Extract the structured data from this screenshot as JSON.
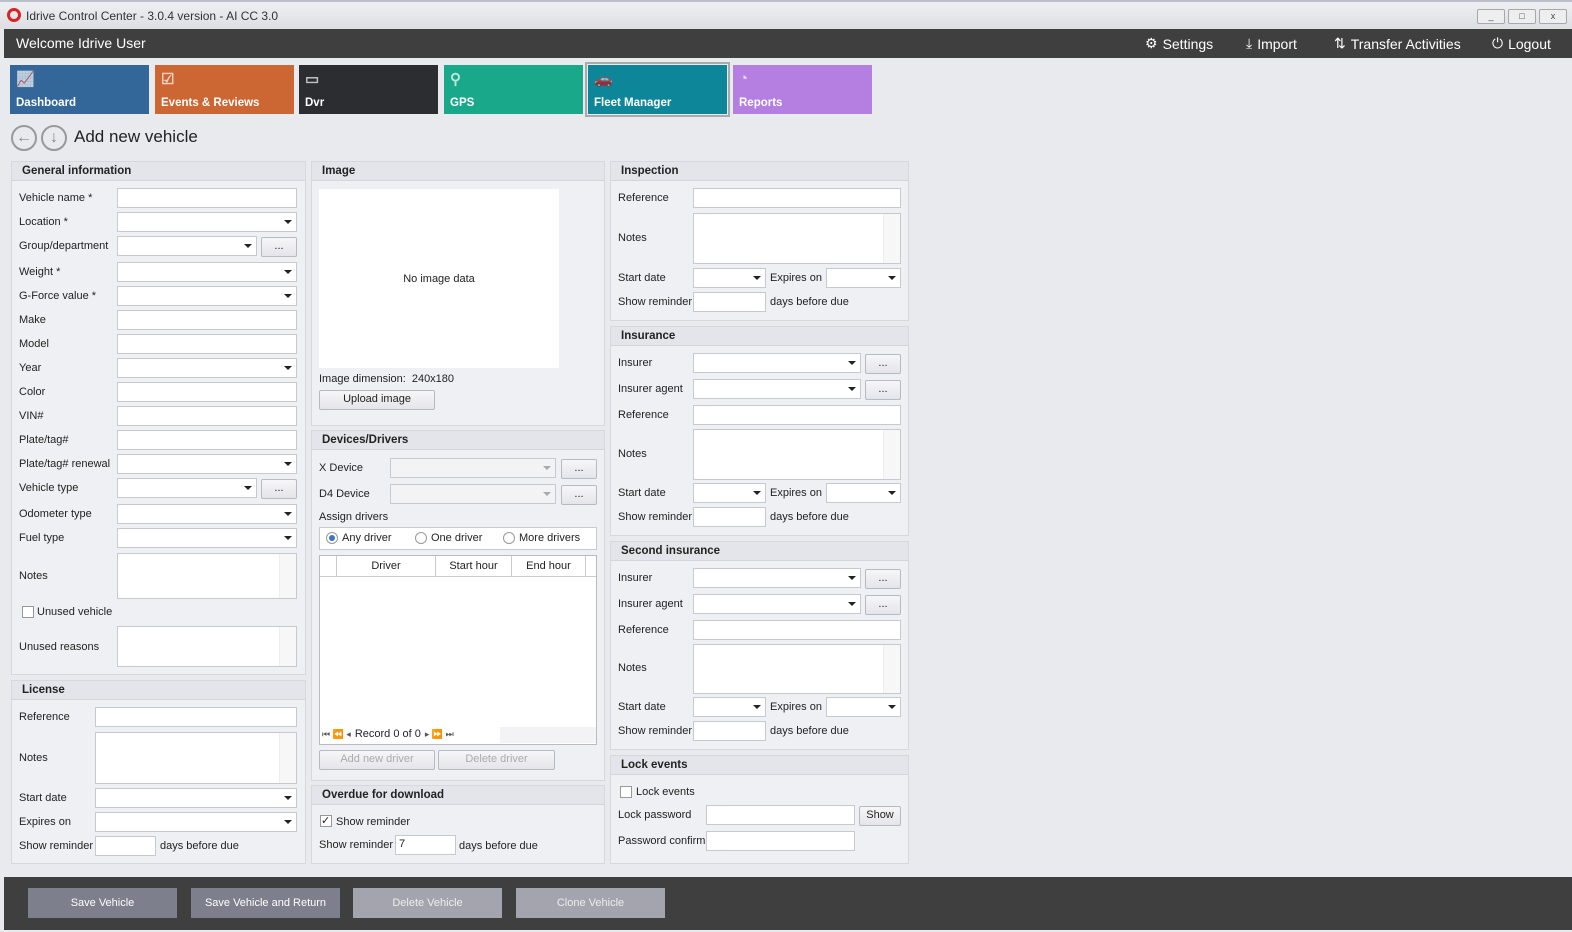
{
  "window": {
    "title": "Idrive Control Center - 3.0.4 version - AI CC 3.0",
    "minimize": "_",
    "maximize": "□",
    "close": "x"
  },
  "header": {
    "welcome": "Welcome Idrive User",
    "settings": "Settings",
    "import": "Import",
    "transfer": "Transfer Activities",
    "logout": "Logout"
  },
  "tiles": [
    {
      "label": "Dashboard",
      "color": "#336699"
    },
    {
      "label": "Events & Reviews",
      "color": "#cc6633"
    },
    {
      "label": "Dvr",
      "color": "#2b2d31"
    },
    {
      "label": "GPS",
      "color": "#1aa88a"
    },
    {
      "label": "Fleet Manager",
      "color": "#0e8699",
      "active": true
    },
    {
      "label": "Reports",
      "color": "#b47fe0"
    }
  ],
  "page": {
    "title": "Add new vehicle"
  },
  "general": {
    "title": "General information",
    "vehicle_name": "Vehicle name *",
    "location": "Location *",
    "group": "Group/department",
    "weight": "Weight *",
    "gforce": "G-Force value *",
    "make": "Make",
    "model": "Model",
    "year": "Year",
    "color": "Color",
    "vin": "VIN#",
    "plate": "Plate/tag#",
    "plate_renewal": "Plate/tag# renewal",
    "vehicle_type": "Vehicle type",
    "odometer": "Odometer type",
    "fuel": "Fuel type",
    "notes": "Notes",
    "unused": "Unused vehicle",
    "unused_reasons": "Unused reasons",
    "more": "..."
  },
  "license": {
    "title": "License",
    "reference": "Reference",
    "notes": "Notes",
    "start": "Start date",
    "expires": "Expires on",
    "reminder": "Show reminder",
    "days": "days before due"
  },
  "image": {
    "title": "Image",
    "empty": "No image data",
    "dimension_label": "Image dimension:",
    "dimension": "240x180",
    "upload": "Upload image"
  },
  "devices": {
    "title": "Devices/Drivers",
    "x_device": "X Device",
    "d4_device": "D4 Device",
    "assign": "Assign drivers",
    "any": "Any driver",
    "one": "One driver",
    "more_drivers": "More drivers",
    "columns": [
      "Driver",
      "Start hour",
      "End hour"
    ],
    "record": "Record 0 of 0",
    "add": "Add new driver",
    "delete": "Delete driver",
    "more": "..."
  },
  "overdue": {
    "title": "Overdue for download",
    "show": "Show reminder",
    "reminder": "Show reminder",
    "value": "7",
    "days": "days before due"
  },
  "inspection": {
    "title": "Inspection",
    "reference": "Reference",
    "notes": "Notes",
    "start": "Start date",
    "expires": "Expires on",
    "reminder": "Show reminder",
    "days": "days before due"
  },
  "insurance": {
    "title": "Insurance",
    "insurer": "Insurer",
    "agent": "Insurer agent",
    "reference": "Reference",
    "notes": "Notes",
    "start": "Start date",
    "expires": "Expires on",
    "reminder": "Show reminder",
    "days": "days before due",
    "more": "..."
  },
  "insurance2": {
    "title": "Second insurance",
    "insurer": "Insurer",
    "agent": "Insurer agent",
    "reference": "Reference",
    "notes": "Notes",
    "start": "Start date",
    "expires": "Expires on",
    "reminder": "Show reminder",
    "days": "days before due",
    "more": "..."
  },
  "lock": {
    "title": "Lock events",
    "events": "Lock events",
    "password": "Lock password",
    "show": "Show",
    "confirm": "Password confirm"
  },
  "footer": {
    "save": "Save Vehicle",
    "save_return": "Save Vehicle and Return",
    "delete": "Delete Vehicle",
    "clone": "Clone Vehicle"
  }
}
